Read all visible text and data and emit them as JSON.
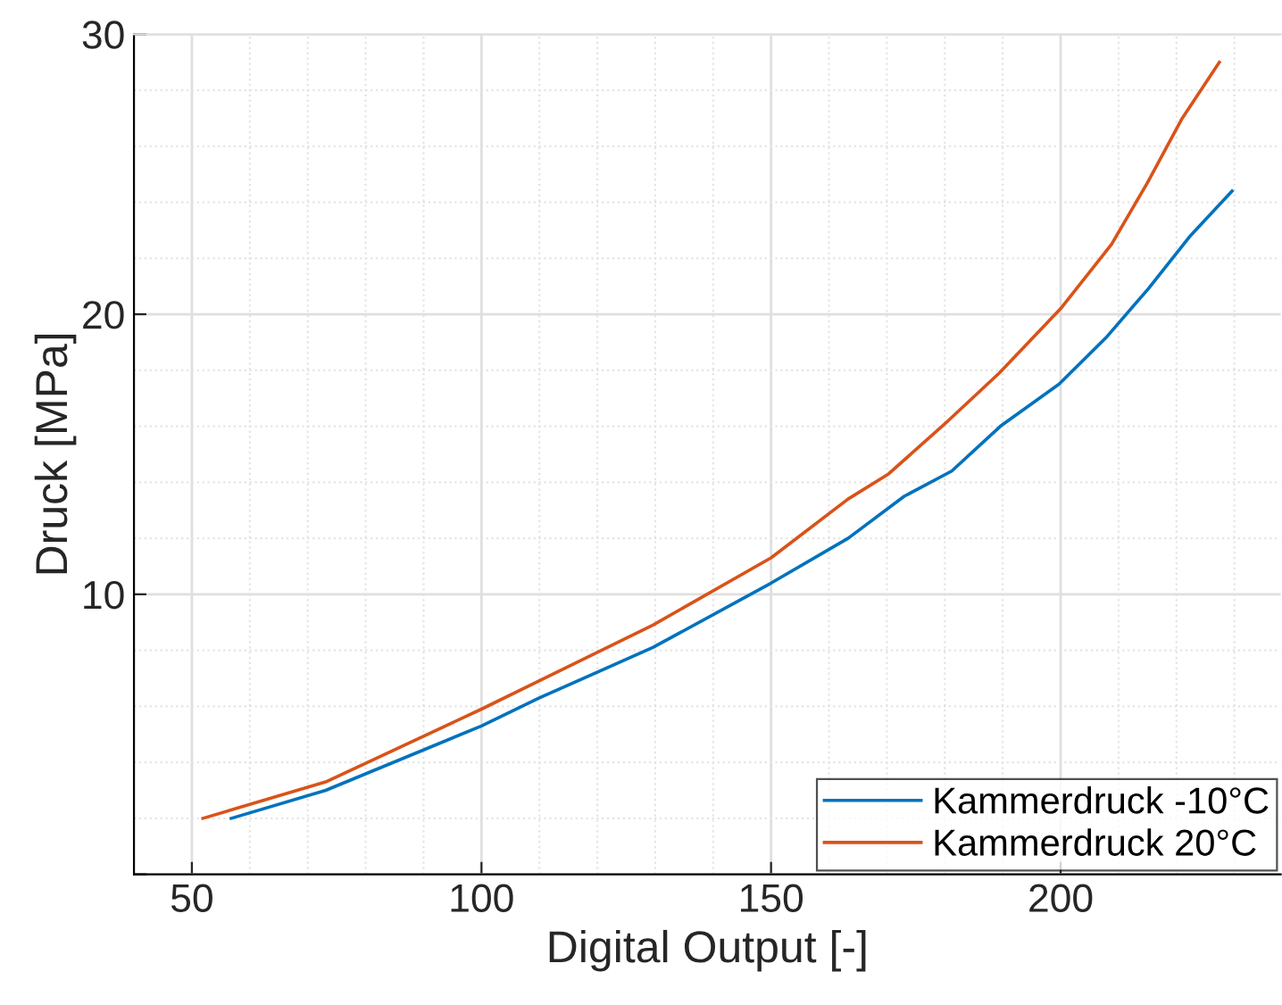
{
  "chart_data": {
    "type": "line",
    "xlabel": "Digital Output [-]",
    "ylabel": "Druck [MPa]",
    "xlim": [
      40,
      238
    ],
    "xticks": [
      50,
      100,
      150,
      200
    ],
    "ylim": [
      0,
      30
    ],
    "yticks": [
      {
        "value": 0,
        "label": null
      },
      10,
      20,
      30
    ],
    "grid": true,
    "legend": "bottom right",
    "line_style": "solid",
    "marker": "none",
    "series": [
      {
        "name": "Kammerdruck -10°C",
        "color": "#0072bd",
        "x": [
          56.8,
          73.1,
          100,
          110,
          129.6,
          150,
          163.3,
          173,
          181.2,
          189.6,
          199.7,
          208,
          215.1,
          222.4,
          229.6
        ],
        "values": [
          2.0,
          3.0,
          5.3,
          6.3,
          8.1,
          10.4,
          12.0,
          13.5,
          14.4,
          16.0,
          17.5,
          19.2,
          20.9,
          22.8,
          24.4
        ]
      },
      {
        "name": "Kammerdruck 20°C",
        "color": "#d95319",
        "x": [
          51.9,
          73.1,
          100,
          129.6,
          150,
          163.3,
          170.3,
          180.6,
          189.4,
          200,
          208.8,
          215,
          221,
          227.4
        ],
        "values": [
          2.0,
          3.3,
          5.9,
          8.9,
          11.3,
          13.4,
          14.3,
          16.2,
          17.9,
          20.2,
          22.5,
          24.7,
          27.0,
          29.0
        ]
      }
    ]
  }
}
